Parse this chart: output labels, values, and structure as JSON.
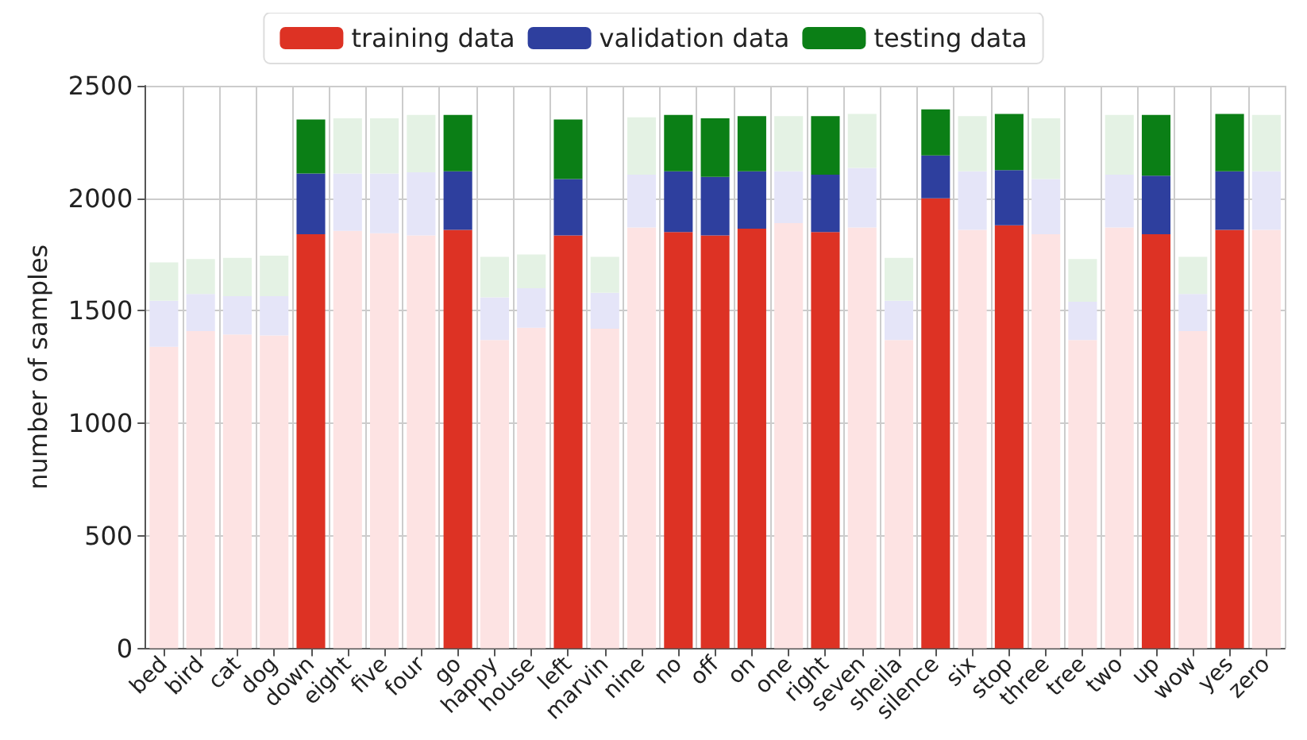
{
  "chart_data": {
    "type": "bar",
    "ylabel": "number of samples",
    "stacked": true,
    "categories": [
      "bed",
      "bird",
      "cat",
      "dog",
      "down",
      "eight",
      "five",
      "four",
      "go",
      "happy",
      "house",
      "left",
      "marvin",
      "nine",
      "no",
      "off",
      "on",
      "one",
      "right",
      "seven",
      "sheila",
      "silence",
      "six",
      "stop",
      "three",
      "tree",
      "two",
      "up",
      "wow",
      "yes",
      "zero"
    ],
    "series": [
      {
        "name": "training data",
        "color": "#dd3224",
        "colors": [
          "#fde3e3",
          "#fde3e3",
          "#fde3e3",
          "#fde3e3",
          "#dd3224",
          "#fde3e3",
          "#fde3e3",
          "#fde3e3",
          "#dd3224",
          "#fde3e3",
          "#fde3e3",
          "#dd3224",
          "#fde3e3",
          "#fde3e3",
          "#dd3224",
          "#dd3224",
          "#dd3224",
          "#fde3e3",
          "#dd3224",
          "#fde3e3",
          "#fde3e3",
          "#dd3224",
          "#fde3e3",
          "#dd3224",
          "#fde3e3",
          "#fde3e3",
          "#fde3e3",
          "#dd3224",
          "#fde3e3",
          "#dd3224",
          "#fde3e3"
        ],
        "values": [
          1340,
          1410,
          1395,
          1390,
          1840,
          1855,
          1845,
          1835,
          1860,
          1370,
          1425,
          1835,
          1420,
          1870,
          1850,
          1835,
          1865,
          1890,
          1850,
          1870,
          1370,
          2000,
          1860,
          1880,
          1840,
          1370,
          1870,
          1840,
          1410,
          1860,
          1860
        ]
      },
      {
        "name": "validation data",
        "color": "#2e3f9e",
        "colors": [
          "#e5e5f8",
          "#e5e5f8",
          "#e5e5f8",
          "#e5e5f8",
          "#2e3f9e",
          "#e5e5f8",
          "#e5e5f8",
          "#e5e5f8",
          "#2e3f9e",
          "#e5e5f8",
          "#e5e5f8",
          "#2e3f9e",
          "#e5e5f8",
          "#e5e5f8",
          "#2e3f9e",
          "#2e3f9e",
          "#2e3f9e",
          "#e5e5f8",
          "#2e3f9e",
          "#e5e5f8",
          "#e5e5f8",
          "#2e3f9e",
          "#e5e5f8",
          "#2e3f9e",
          "#e5e5f8",
          "#e5e5f8",
          "#e5e5f8",
          "#2e3f9e",
          "#e5e5f8",
          "#2e3f9e",
          "#e5e5f8"
        ],
        "values": [
          205,
          165,
          170,
          175,
          270,
          255,
          265,
          280,
          260,
          190,
          175,
          250,
          160,
          235,
          270,
          260,
          255,
          230,
          255,
          265,
          175,
          190,
          260,
          245,
          245,
          170,
          235,
          260,
          165,
          260,
          260
        ]
      },
      {
        "name": "testing data",
        "color": "#0b7f16",
        "colors": [
          "#e4f2e4",
          "#e4f2e4",
          "#e4f2e4",
          "#e4f2e4",
          "#0b7f16",
          "#e4f2e4",
          "#e4f2e4",
          "#e4f2e4",
          "#0b7f16",
          "#e4f2e4",
          "#e4f2e4",
          "#0b7f16",
          "#e4f2e4",
          "#e4f2e4",
          "#0b7f16",
          "#0b7f16",
          "#0b7f16",
          "#e4f2e4",
          "#0b7f16",
          "#e4f2e4",
          "#e4f2e4",
          "#0b7f16",
          "#e4f2e4",
          "#0b7f16",
          "#e4f2e4",
          "#e4f2e4",
          "#e4f2e4",
          "#0b7f16",
          "#e4f2e4",
          "#0b7f16",
          "#e4f2e4"
        ],
        "values": [
          170,
          155,
          170,
          180,
          240,
          245,
          245,
          255,
          250,
          180,
          150,
          265,
          160,
          255,
          250,
          260,
          245,
          245,
          260,
          240,
          190,
          205,
          245,
          250,
          270,
          190,
          265,
          270,
          165,
          255,
          250
        ]
      }
    ],
    "ylim": [
      0,
      2500
    ],
    "yticks": [
      0,
      500,
      1000,
      1500,
      2000,
      2500
    ],
    "grid": true,
    "legend": "top"
  }
}
